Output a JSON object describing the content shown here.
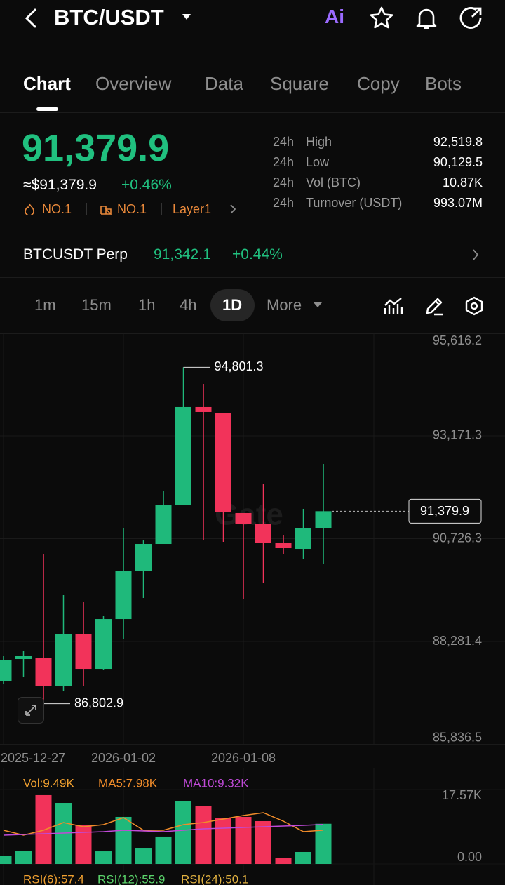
{
  "header": {
    "title": "BTC/USDT",
    "ai_label": "Ai"
  },
  "tabs": [
    "Chart",
    "Overview",
    "Data",
    "Square",
    "Copy",
    "Bots"
  ],
  "price": {
    "last": "91,379.9",
    "fiat": "≈$91,379.9",
    "change": "+0.46%",
    "badges": [
      "NO.1",
      "NO.1",
      "Layer1"
    ]
  },
  "stats": [
    {
      "period": "24h",
      "label": "High",
      "value": "92,519.8"
    },
    {
      "period": "24h",
      "label": "Low",
      "value": "90,129.5"
    },
    {
      "period": "24h",
      "label": "Vol (BTC)",
      "value": "10.87K"
    },
    {
      "period": "24h",
      "label": "Turnover (USDT)",
      "value": "993.07M"
    }
  ],
  "perp": {
    "name": "BTCUSDT Perp",
    "price": "91,342.1",
    "change": "+0.44%"
  },
  "timeframes": [
    "1m",
    "15m",
    "1h",
    "4h",
    "1D",
    "More"
  ],
  "watermark": "Gate",
  "chart_data": [
    {
      "type": "candlestick",
      "categories": [
        "2025-12-27",
        null,
        null,
        null,
        null,
        null,
        "2026-01-02",
        null,
        null,
        null,
        null,
        null,
        "2026-01-08",
        null,
        null,
        null,
        null
      ],
      "open": [
        87346,
        87864,
        87897,
        87230,
        88465,
        87630,
        88815,
        89967,
        90601,
        91519,
        93856,
        93722,
        91336,
        91085,
        90618,
        90484,
        90985
      ],
      "high": [
        87931,
        88048,
        90351,
        89383,
        89216,
        88882,
        90968,
        90684,
        91853,
        94801.3,
        94406,
        93722,
        91336,
        92020,
        90801,
        91436,
        92504
      ],
      "low": [
        87263,
        87430,
        86802.9,
        87096,
        87230,
        87597,
        88348,
        89316,
        90601,
        91519,
        90684,
        90651,
        89299,
        89683,
        90351,
        90234,
        90134
      ],
      "close": [
        87847,
        87931,
        87230,
        88465,
        87630,
        88815,
        89967,
        90601,
        91519,
        93856,
        93739,
        91352,
        91085,
        90618,
        90501,
        90985,
        91379.9
      ],
      "up_color": "#1fb97b",
      "down_color": "#f2335a",
      "ylim": [
        85836.5,
        95616.2
      ],
      "yticks": [
        {
          "value": 95616.2,
          "label": "95,616.2"
        },
        {
          "value": 93171.3,
          "label": "93,171.3"
        },
        {
          "value": 90726.3,
          "label": "90,726.3"
        },
        {
          "value": 88281.4,
          "label": "88,281.4"
        },
        {
          "value": 85836.5,
          "label": "85,836.5"
        }
      ],
      "grid": true,
      "high_label": {
        "value": 94801.3,
        "label": "94,801.3"
      },
      "low_label": {
        "value": 86802.9,
        "label": "86,802.9"
      },
      "last_price": {
        "value": 91379.9,
        "label": "91,379.9"
      }
    },
    {
      "type": "bar",
      "series": [
        {
          "name": "Vol:9.49K",
          "color": "#f0a030",
          "values": [
            1990,
            3150,
            16250,
            14420,
            9120,
            2980,
            11110,
            3810,
            6470,
            14760,
            13600,
            10940,
            11110,
            10110,
            1490,
            2820,
            9490
          ]
        },
        {
          "name": "MA5:7.98K",
          "color": "#f08c2a",
          "values": [
            7960,
            6800,
            7960,
            9780,
            8790,
            9280,
            10940,
            7960,
            7960,
            9280,
            9780,
            10610,
            11440,
            12100,
            10110,
            7630,
            7980
          ]
        },
        {
          "name": "MA10:9.32K",
          "color": "#c04ad8",
          "values": [
            6800,
            6970,
            7130,
            7300,
            7460,
            7630,
            7960,
            7790,
            7630,
            7960,
            8290,
            8460,
            8620,
            8790,
            8950,
            9120,
            9320
          ]
        }
      ],
      "ylim": [
        0,
        17570
      ],
      "yticks": [
        {
          "value": 17570,
          "label": "17.57K"
        },
        {
          "value": 0,
          "label": "0.00"
        }
      ],
      "indicators": [
        {
          "name": "RSI(6):57.4",
          "color": "#f0a030"
        },
        {
          "name": "RSI(12):55.9",
          "color": "#5ad36a"
        },
        {
          "name": "RSI(24):50.1",
          "color": "#e0b040"
        }
      ]
    }
  ]
}
